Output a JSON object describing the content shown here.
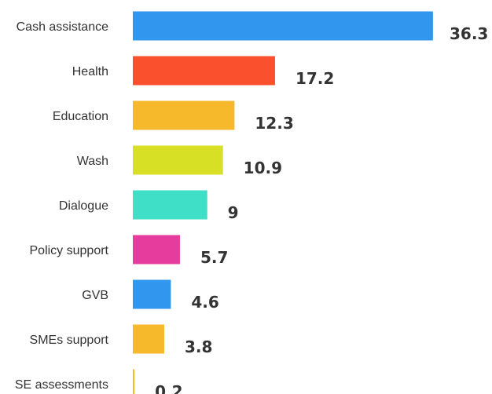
{
  "chart_data": {
    "type": "bar",
    "orientation": "horizontal",
    "title": "",
    "xlabel": "",
    "ylabel": "",
    "grid": false,
    "legend": "none",
    "data_labels": true,
    "categories": [
      "Cash assistance",
      "Health",
      "Education",
      "Wash",
      "Dialogue",
      "Policy support",
      "GVB",
      "SMEs support",
      "SE assessments"
    ],
    "values": [
      36.3,
      17.2,
      12.3,
      10.9,
      9,
      5.7,
      4.6,
      3.8,
      0.2
    ],
    "value_labels": [
      "36.3",
      "17.2",
      "12.3",
      "10.9",
      "9",
      "5.7",
      "4.6",
      "3.8",
      "0.2"
    ],
    "colors": [
      "#3197ee",
      "#fa502d",
      "#f7b92c",
      "#d8e026",
      "#3fdec6",
      "#e63c9e",
      "#3197ee",
      "#f7b92c",
      "#f7b92c"
    ],
    "label_color": "#333333"
  }
}
